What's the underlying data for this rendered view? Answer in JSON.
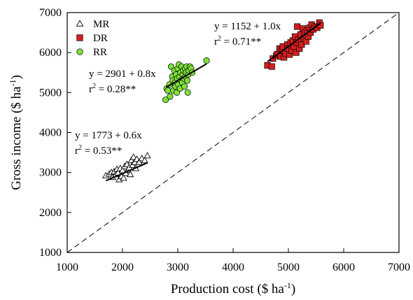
{
  "chart_data": {
    "type": "scatter",
    "title": "",
    "xlabel_main": "Production cost ($ ha",
    "xlabel_sup": "-1",
    "xlabel_close": ")",
    "ylabel_main": "Gross income ($ ha",
    "ylabel_sup": "-1",
    "ylabel_close": ")",
    "xlim": [
      1000,
      7000
    ],
    "ylim": [
      1000,
      7000
    ],
    "xticks": [
      1000,
      2000,
      3000,
      4000,
      5000,
      6000,
      7000
    ],
    "yticks": [
      1000,
      2000,
      3000,
      4000,
      5000,
      6000,
      7000
    ],
    "grid": false,
    "legend_position": "top-left",
    "reference_line": {
      "style": "dashed",
      "equation": "1:1",
      "x": [
        1000,
        7000
      ],
      "y": [
        1000,
        7000
      ]
    },
    "series": [
      {
        "name": "MR",
        "marker": "triangle-open",
        "color": "#000000",
        "fill": "#ffffff",
        "eq_text": "y = 1773 + 0.6x",
        "r2_prefix": "r",
        "r2_sup": "2",
        "r2_value": " = 0.53**",
        "fit": {
          "intercept": 1773,
          "slope": 0.6,
          "x_range": [
            1700,
            2450
          ]
        },
        "points": [
          [
            1700,
            2920
          ],
          [
            1760,
            2960
          ],
          [
            1800,
            3000
          ],
          [
            1820,
            2880
          ],
          [
            1850,
            3020
          ],
          [
            1880,
            2950
          ],
          [
            1900,
            3080
          ],
          [
            1920,
            2990
          ],
          [
            1940,
            2820
          ],
          [
            1960,
            3100
          ],
          [
            1980,
            2900
          ],
          [
            2000,
            3050
          ],
          [
            2020,
            2860
          ],
          [
            2040,
            3150
          ],
          [
            2060,
            2980
          ],
          [
            2080,
            3200
          ],
          [
            2100,
            3060
          ],
          [
            2120,
            3120
          ],
          [
            2140,
            2950
          ],
          [
            2160,
            3300
          ],
          [
            2180,
            3180
          ],
          [
            2200,
            3380
          ],
          [
            2220,
            3250
          ],
          [
            2240,
            3100
          ],
          [
            2260,
            3330
          ],
          [
            2300,
            3250
          ],
          [
            2350,
            3350
          ],
          [
            2400,
            3300
          ],
          [
            2450,
            3420
          ]
        ]
      },
      {
        "name": "DR",
        "marker": "square",
        "color": "#000000",
        "fill": "#d61e1e",
        "eq_text": "y = 1152 + 1.0x",
        "r2_prefix": "r",
        "r2_sup": "2",
        "r2_value": " = 0.71**",
        "fit": {
          "intercept": 1152,
          "slope": 1.0,
          "x_range": [
            4620,
            5580
          ]
        },
        "points": [
          [
            4620,
            5680
          ],
          [
            4700,
            5650
          ],
          [
            4720,
            5850
          ],
          [
            4780,
            5920
          ],
          [
            4800,
            5960
          ],
          [
            4840,
            6100
          ],
          [
            4860,
            5900
          ],
          [
            4880,
            6050
          ],
          [
            4900,
            6150
          ],
          [
            4920,
            5880
          ],
          [
            4950,
            5980
          ],
          [
            4980,
            6200
          ],
          [
            5000,
            6100
          ],
          [
            5020,
            5950
          ],
          [
            5040,
            6250
          ],
          [
            5060,
            6050
          ],
          [
            5080,
            6300
          ],
          [
            5100,
            6150
          ],
          [
            5120,
            6400
          ],
          [
            5140,
            6000
          ],
          [
            5150,
            6250
          ],
          [
            5160,
            6650
          ],
          [
            5180,
            6320
          ],
          [
            5200,
            6100
          ],
          [
            5220,
            6450
          ],
          [
            5240,
            6200
          ],
          [
            5260,
            6600
          ],
          [
            5280,
            6350
          ],
          [
            5300,
            6500
          ],
          [
            5320,
            6280
          ],
          [
            5340,
            6550
          ],
          [
            5360,
            6400
          ],
          [
            5380,
            6620
          ],
          [
            5400,
            6500
          ],
          [
            5420,
            6700
          ],
          [
            5450,
            6580
          ],
          [
            5480,
            6650
          ],
          [
            5520,
            6620
          ],
          [
            5560,
            6750
          ],
          [
            5580,
            6680
          ]
        ]
      },
      {
        "name": "RR",
        "marker": "circle",
        "color": "#000000",
        "fill": "#7ee03a",
        "eq_text": "y = 2901 + 0.8x",
        "r2_prefix": "r",
        "r2_sup": "2",
        "r2_value": " = 0.28**",
        "fit": {
          "intercept": 2901,
          "slope": 0.8,
          "x_range": [
            2790,
            3520
          ]
        },
        "points": [
          [
            2780,
            4820
          ],
          [
            2800,
            5100
          ],
          [
            2820,
            5050
          ],
          [
            2850,
            5200
          ],
          [
            2860,
            4900
          ],
          [
            2880,
            5650
          ],
          [
            2900,
            5400
          ],
          [
            2910,
            5300
          ],
          [
            2920,
            5050
          ],
          [
            2940,
            5550
          ],
          [
            2950,
            5250
          ],
          [
            2960,
            5150
          ],
          [
            2970,
            5450
          ],
          [
            2980,
            5000
          ],
          [
            2990,
            5350
          ],
          [
            3000,
            5600
          ],
          [
            3010,
            5200
          ],
          [
            3020,
            5700
          ],
          [
            3030,
            5400
          ],
          [
            3040,
            5100
          ],
          [
            3050,
            5500
          ],
          [
            3060,
            5300
          ],
          [
            3070,
            5650
          ],
          [
            3080,
            5250
          ],
          [
            3090,
            5450
          ],
          [
            3100,
            5550
          ],
          [
            3110,
            5350
          ],
          [
            3120,
            5150
          ],
          [
            3130,
            5600
          ],
          [
            3140,
            5400
          ],
          [
            3150,
            5500
          ],
          [
            3160,
            5650
          ],
          [
            3170,
            5300
          ],
          [
            3180,
            5000
          ],
          [
            3190,
            5450
          ],
          [
            3200,
            5550
          ],
          [
            3220,
            5650
          ],
          [
            3240,
            5600
          ],
          [
            3260,
            5500
          ],
          [
            3520,
            5800
          ]
        ]
      }
    ]
  }
}
